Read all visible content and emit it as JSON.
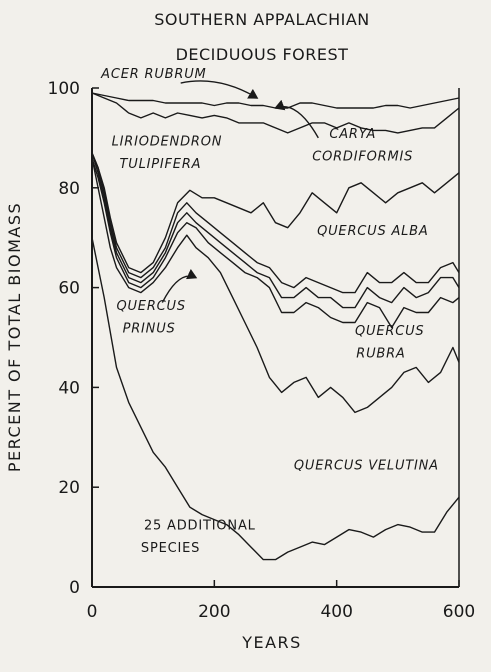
{
  "chart_data": {
    "type": "area",
    "title_line1": "SOUTHERN APPALACHIAN",
    "title_line2": "DECIDUOUS FOREST",
    "xlabel": "YEARS",
    "ylabel": "PERCENT OF TOTAL BIOMASS",
    "xlim": [
      0,
      600
    ],
    "ylim": [
      0,
      100
    ],
    "xticks": [
      0,
      200,
      400,
      600
    ],
    "yticks": [
      0,
      20,
      40,
      60,
      80,
      100
    ],
    "grid": false,
    "legend": "none",
    "series_boundaries": [
      {
        "id": "b1",
        "points": [
          [
            0,
            70
          ],
          [
            20,
            58
          ],
          [
            40,
            44
          ],
          [
            60,
            37
          ],
          [
            80,
            32
          ],
          [
            100,
            27
          ],
          [
            120,
            24
          ],
          [
            140,
            20
          ],
          [
            160,
            16
          ],
          [
            180,
            14.5
          ],
          [
            200,
            13.5
          ],
          [
            220,
            12.5
          ],
          [
            240,
            10.5
          ],
          [
            260,
            8
          ],
          [
            280,
            5.5
          ],
          [
            300,
            5.5
          ],
          [
            320,
            7
          ],
          [
            340,
            8
          ],
          [
            360,
            9
          ],
          [
            380,
            8.5
          ],
          [
            400,
            10
          ],
          [
            420,
            11.5
          ],
          [
            440,
            11
          ],
          [
            460,
            10
          ],
          [
            480,
            11.5
          ],
          [
            500,
            12.5
          ],
          [
            520,
            12
          ],
          [
            540,
            11
          ],
          [
            560,
            11
          ],
          [
            580,
            15
          ],
          [
            600,
            18
          ]
        ]
      },
      {
        "id": "b2",
        "points": [
          [
            0,
            86
          ],
          [
            10,
            80
          ],
          [
            20,
            74
          ],
          [
            30,
            68
          ],
          [
            40,
            64
          ],
          [
            60,
            60
          ],
          [
            80,
            59
          ],
          [
            100,
            61
          ],
          [
            120,
            64
          ],
          [
            140,
            68
          ],
          [
            155,
            70.5
          ],
          [
            170,
            68
          ],
          [
            190,
            66
          ],
          [
            210,
            63
          ],
          [
            230,
            58
          ],
          [
            250,
            53
          ],
          [
            270,
            48
          ],
          [
            290,
            42
          ],
          [
            310,
            39
          ],
          [
            330,
            41
          ],
          [
            350,
            42
          ],
          [
            370,
            38
          ],
          [
            390,
            40
          ],
          [
            410,
            38
          ],
          [
            430,
            35
          ],
          [
            450,
            36
          ],
          [
            470,
            38
          ],
          [
            490,
            40
          ],
          [
            510,
            43
          ],
          [
            530,
            44
          ],
          [
            550,
            41
          ],
          [
            570,
            43
          ],
          [
            590,
            48
          ],
          [
            600,
            45
          ]
        ]
      },
      {
        "id": "b3",
        "points": [
          [
            0,
            86
          ],
          [
            10,
            82
          ],
          [
            20,
            77
          ],
          [
            30,
            71
          ],
          [
            40,
            66
          ],
          [
            60,
            61
          ],
          [
            80,
            60
          ],
          [
            100,
            62
          ],
          [
            120,
            66
          ],
          [
            140,
            71
          ],
          [
            155,
            73
          ],
          [
            170,
            72
          ],
          [
            190,
            69
          ],
          [
            210,
            67
          ],
          [
            230,
            65
          ],
          [
            250,
            63
          ],
          [
            270,
            62
          ],
          [
            290,
            60
          ],
          [
            310,
            55
          ],
          [
            330,
            55
          ],
          [
            350,
            57
          ],
          [
            370,
            56
          ],
          [
            390,
            54
          ],
          [
            410,
            53
          ],
          [
            430,
            53
          ],
          [
            450,
            57
          ],
          [
            470,
            56
          ],
          [
            490,
            52
          ],
          [
            510,
            56
          ],
          [
            530,
            55
          ],
          [
            550,
            55
          ],
          [
            570,
            58
          ],
          [
            590,
            57
          ],
          [
            600,
            58
          ]
        ]
      },
      {
        "id": "b4",
        "points": [
          [
            0,
            87
          ],
          [
            10,
            83
          ],
          [
            20,
            78
          ],
          [
            30,
            72
          ],
          [
            40,
            67
          ],
          [
            60,
            62
          ],
          [
            80,
            61
          ],
          [
            100,
            63
          ],
          [
            120,
            67
          ],
          [
            140,
            73
          ],
          [
            155,
            75
          ],
          [
            170,
            73
          ],
          [
            190,
            71
          ],
          [
            210,
            69
          ],
          [
            230,
            67
          ],
          [
            250,
            65
          ],
          [
            270,
            63
          ],
          [
            290,
            62
          ],
          [
            310,
            58
          ],
          [
            330,
            58
          ],
          [
            350,
            60
          ],
          [
            370,
            58
          ],
          [
            390,
            58
          ],
          [
            410,
            56
          ],
          [
            430,
            56
          ],
          [
            450,
            60
          ],
          [
            470,
            58
          ],
          [
            490,
            57
          ],
          [
            510,
            60
          ],
          [
            530,
            58
          ],
          [
            550,
            59
          ],
          [
            570,
            62
          ],
          [
            590,
            62
          ],
          [
            600,
            60
          ]
        ]
      },
      {
        "id": "b5",
        "points": [
          [
            0,
            87
          ],
          [
            10,
            84
          ],
          [
            20,
            79
          ],
          [
            30,
            73
          ],
          [
            40,
            68
          ],
          [
            60,
            63
          ],
          [
            80,
            62
          ],
          [
            100,
            64
          ],
          [
            120,
            68
          ],
          [
            140,
            75
          ],
          [
            155,
            77
          ],
          [
            170,
            75
          ],
          [
            190,
            73
          ],
          [
            210,
            71
          ],
          [
            230,
            69
          ],
          [
            250,
            67
          ],
          [
            270,
            65
          ],
          [
            290,
            64
          ],
          [
            310,
            61
          ],
          [
            330,
            60
          ],
          [
            350,
            62
          ],
          [
            370,
            61
          ],
          [
            390,
            60
          ],
          [
            410,
            59
          ],
          [
            430,
            59
          ],
          [
            450,
            63
          ],
          [
            470,
            61
          ],
          [
            490,
            61
          ],
          [
            510,
            63
          ],
          [
            530,
            61
          ],
          [
            550,
            61
          ],
          [
            570,
            64
          ],
          [
            590,
            65
          ],
          [
            600,
            63
          ]
        ]
      },
      {
        "id": "b6",
        "points": [
          [
            0,
            87
          ],
          [
            10,
            84
          ],
          [
            20,
            80
          ],
          [
            30,
            74
          ],
          [
            40,
            69
          ],
          [
            60,
            64
          ],
          [
            80,
            63
          ],
          [
            100,
            65
          ],
          [
            120,
            70
          ],
          [
            140,
            77
          ],
          [
            160,
            79.5
          ],
          [
            180,
            78
          ],
          [
            200,
            78
          ],
          [
            220,
            77
          ],
          [
            240,
            76
          ],
          [
            260,
            75
          ],
          [
            280,
            77
          ],
          [
            300,
            73
          ],
          [
            320,
            72
          ],
          [
            340,
            75
          ],
          [
            360,
            79
          ],
          [
            380,
            77
          ],
          [
            400,
            75
          ],
          [
            420,
            80
          ],
          [
            440,
            81
          ],
          [
            460,
            79
          ],
          [
            480,
            77
          ],
          [
            500,
            79
          ],
          [
            520,
            80
          ],
          [
            540,
            81
          ],
          [
            560,
            79
          ],
          [
            580,
            81
          ],
          [
            600,
            83
          ]
        ]
      },
      {
        "id": "b7",
        "points": [
          [
            0,
            99
          ],
          [
            20,
            98
          ],
          [
            40,
            97
          ],
          [
            60,
            95
          ],
          [
            80,
            94
          ],
          [
            100,
            95
          ],
          [
            120,
            94
          ],
          [
            140,
            95
          ],
          [
            160,
            94.5
          ],
          [
            180,
            94
          ],
          [
            200,
            94.5
          ],
          [
            220,
            94
          ],
          [
            240,
            93
          ],
          [
            260,
            93
          ],
          [
            280,
            93
          ],
          [
            300,
            92
          ],
          [
            320,
            91
          ],
          [
            340,
            92
          ],
          [
            360,
            93
          ],
          [
            380,
            93
          ],
          [
            400,
            92
          ],
          [
            420,
            93
          ],
          [
            440,
            92
          ],
          [
            460,
            91.5
          ],
          [
            480,
            91.5
          ],
          [
            500,
            91
          ],
          [
            520,
            91.5
          ],
          [
            540,
            92
          ],
          [
            560,
            92
          ],
          [
            580,
            94
          ],
          [
            600,
            96
          ]
        ]
      },
      {
        "id": "b8",
        "points": [
          [
            0,
            99
          ],
          [
            20,
            98.5
          ],
          [
            40,
            98
          ],
          [
            60,
            97.5
          ],
          [
            80,
            97.5
          ],
          [
            100,
            97.5
          ],
          [
            120,
            97
          ],
          [
            140,
            97
          ],
          [
            160,
            97
          ],
          [
            180,
            97
          ],
          [
            200,
            96.5
          ],
          [
            220,
            97
          ],
          [
            240,
            97
          ],
          [
            260,
            96.5
          ],
          [
            280,
            96.5
          ],
          [
            300,
            96
          ],
          [
            320,
            96
          ],
          [
            340,
            97
          ],
          [
            360,
            97
          ],
          [
            380,
            96.5
          ],
          [
            400,
            96
          ],
          [
            420,
            96
          ],
          [
            440,
            96
          ],
          [
            460,
            96
          ],
          [
            480,
            96.5
          ],
          [
            500,
            96.5
          ],
          [
            520,
            96
          ],
          [
            540,
            96.5
          ],
          [
            560,
            97
          ],
          [
            580,
            97.5
          ],
          [
            600,
            98
          ]
        ]
      }
    ],
    "labels": [
      {
        "id": "acer",
        "text": "ACER RUBRUM",
        "style": "italic",
        "x": 15,
        "y": 102
      },
      {
        "id": "lirio1",
        "text": "LIRIODENDRON",
        "style": "italic",
        "x": 32,
        "y": 88.5
      },
      {
        "id": "lirio2",
        "text": "TULIPIFERA",
        "style": "italic",
        "x": 45,
        "y": 84
      },
      {
        "id": "carya1",
        "text": "CARYA",
        "style": "italic",
        "x": 388,
        "y": 90
      },
      {
        "id": "carya2",
        "text": "CORDIFORMIS",
        "style": "italic",
        "x": 360,
        "y": 85.5
      },
      {
        "id": "alba",
        "text": "QUERCUS ALBA",
        "style": "italic",
        "x": 368,
        "y": 70.5
      },
      {
        "id": "prinus1",
        "text": "QUERCUS",
        "style": "italic",
        "x": 40,
        "y": 55.5
      },
      {
        "id": "prinus2",
        "text": "PRINUS",
        "style": "italic",
        "x": 50,
        "y": 51
      },
      {
        "id": "rubra1",
        "text": "QUERCUS",
        "style": "italic",
        "x": 430,
        "y": 50.5
      },
      {
        "id": "rubra2",
        "text": "RUBRA",
        "style": "italic",
        "x": 432,
        "y": 46
      },
      {
        "id": "velutina",
        "text": "QUERCUS VELUTINA",
        "style": "italic",
        "x": 330,
        "y": 23.5
      },
      {
        "id": "addl1",
        "text": "25 ADDITIONAL",
        "style": "plain",
        "x": 85,
        "y": 11.5
      },
      {
        "id": "addl2",
        "text": "SPECIES",
        "style": "plain",
        "x": 80,
        "y": 7
      }
    ],
    "arrows": [
      {
        "id": "acer-arrow",
        "from": [
          145,
          101
        ],
        "to": [
          270,
          98
        ]
      },
      {
        "id": "carya-arrow",
        "from": [
          370,
          90
        ],
        "to": [
          300,
          96
        ]
      },
      {
        "id": "prinus-arrow",
        "from": [
          115,
          57
        ],
        "to": [
          170,
          62
        ]
      }
    ]
  }
}
